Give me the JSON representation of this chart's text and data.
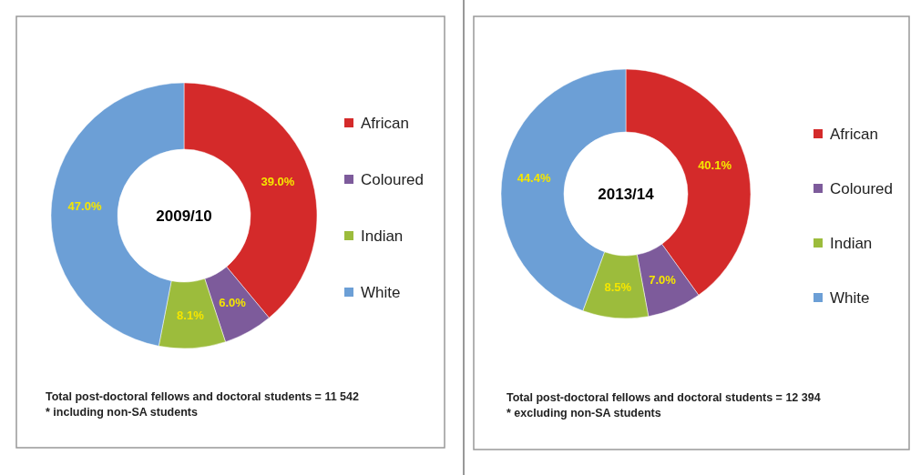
{
  "chart_data": [
    {
      "type": "donut",
      "title": "2009/10",
      "categories": [
        "African",
        "Coloured",
        "Indian",
        "White"
      ],
      "values": [
        39.0,
        6.0,
        8.1,
        47.0
      ],
      "colors": [
        "#d42a2a",
        "#7d5b9b",
        "#9cbc3c",
        "#6c9fd6"
      ],
      "value_labels": [
        "39.0%",
        "6.0%",
        "8.1%",
        "47.0%"
      ],
      "legend": "right",
      "annotations": [
        "Total post-doctoral fellows and doctoral students = 11 542",
        "* including non-SA students"
      ]
    },
    {
      "type": "donut",
      "title": "2013/14",
      "categories": [
        "African",
        "Coloured",
        "Indian",
        "White"
      ],
      "values": [
        40.1,
        7.0,
        8.5,
        44.4
      ],
      "colors": [
        "#d42a2a",
        "#7d5b9b",
        "#9cbc3c",
        "#6c9fd6"
      ],
      "value_labels": [
        "40.1%",
        "7.0%",
        "8.5%",
        "44.4%"
      ],
      "legend": "right",
      "annotations": [
        "Total post-doctoral fellows and doctoral students = 12 394",
        "* excluding non-SA students"
      ]
    }
  ]
}
